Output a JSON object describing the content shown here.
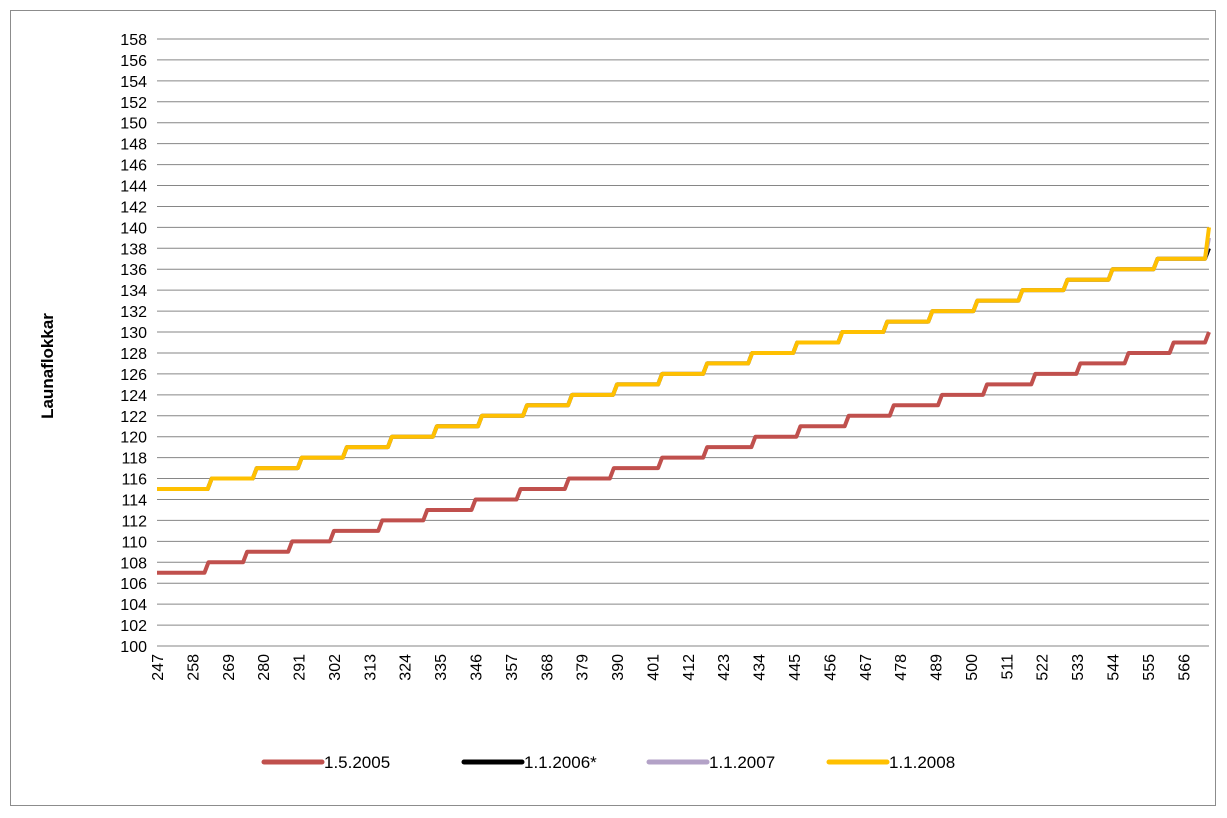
{
  "chart_data": {
    "type": "line",
    "ylabel": "Launaflokkar",
    "xlabel": "",
    "ylim": [
      100,
      158
    ],
    "y_ticks": [
      100,
      102,
      104,
      106,
      108,
      110,
      112,
      114,
      116,
      118,
      120,
      122,
      124,
      126,
      128,
      130,
      132,
      134,
      136,
      138,
      140,
      142,
      144,
      146,
      148,
      150,
      152,
      154,
      156,
      158
    ],
    "x_ticks": [
      247,
      258,
      269,
      280,
      291,
      302,
      313,
      324,
      335,
      346,
      357,
      368,
      379,
      390,
      401,
      412,
      423,
      434,
      445,
      456,
      467,
      478,
      489,
      500,
      511,
      522,
      533,
      544,
      555,
      566
    ],
    "xlim": [
      247,
      574
    ],
    "grid": true,
    "legend_position": "bottom",
    "series": [
      {
        "name": "1.5.2005",
        "color": "#c0504d",
        "x": [
          247,
          263,
          275,
          289,
          302,
          317,
          331,
          346,
          360,
          375,
          389,
          404,
          418,
          433,
          447,
          462,
          476,
          491,
          505,
          520,
          534,
          549,
          563,
          574
        ],
        "values": [
          107,
          108,
          109,
          110,
          111,
          112,
          113,
          114,
          115,
          116,
          117,
          118,
          119,
          120,
          121,
          122,
          123,
          124,
          125,
          126,
          127,
          128,
          129,
          130
        ]
      },
      {
        "name": "1.1.2006*",
        "color": "#000000",
        "x": [
          247,
          264,
          278,
          292,
          306,
          320,
          334,
          348,
          362,
          376,
          390,
          404,
          418,
          432,
          446,
          460,
          474,
          488,
          502,
          516,
          530,
          544,
          558,
          574
        ],
        "values": [
          115,
          116,
          117,
          118,
          119,
          120,
          121,
          122,
          123,
          124,
          125,
          126,
          127,
          128,
          129,
          130,
          131,
          132,
          133,
          134,
          135,
          136,
          137,
          138
        ]
      },
      {
        "name": "1.1.2007",
        "color": "#b3a2c7",
        "x": [
          247,
          264,
          278,
          292,
          306,
          320,
          334,
          348,
          362,
          376,
          390,
          404,
          418,
          432,
          446,
          460,
          474,
          488,
          502,
          516,
          530,
          544,
          558,
          574
        ],
        "values": [
          115,
          116,
          117,
          118,
          119,
          120,
          121,
          122,
          123,
          124,
          125,
          126,
          127,
          128,
          129,
          130,
          131,
          132,
          133,
          134,
          135,
          136,
          137,
          139
        ]
      },
      {
        "name": "1.1.2008",
        "color": "#ffc000",
        "x": [
          247,
          264,
          278,
          292,
          306,
          320,
          334,
          348,
          362,
          376,
          390,
          404,
          418,
          432,
          446,
          460,
          474,
          488,
          502,
          516,
          530,
          544,
          558,
          574
        ],
        "values": [
          115,
          116,
          117,
          118,
          119,
          120,
          121,
          122,
          123,
          124,
          125,
          126,
          127,
          128,
          129,
          130,
          131,
          132,
          133,
          134,
          135,
          136,
          137,
          140
        ]
      }
    ]
  }
}
